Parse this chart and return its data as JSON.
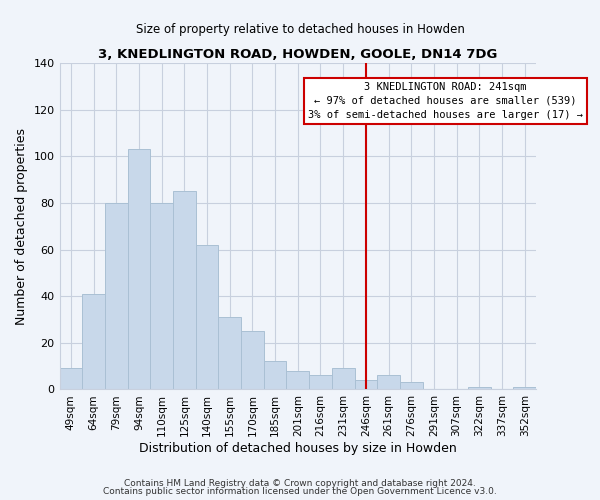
{
  "title": "3, KNEDLINGTON ROAD, HOWDEN, GOOLE, DN14 7DG",
  "subtitle": "Size of property relative to detached houses in Howden",
  "xlabel": "Distribution of detached houses by size in Howden",
  "ylabel": "Number of detached properties",
  "bar_labels": [
    "49sqm",
    "64sqm",
    "79sqm",
    "94sqm",
    "110sqm",
    "125sqm",
    "140sqm",
    "155sqm",
    "170sqm",
    "185sqm",
    "201sqm",
    "216sqm",
    "231sqm",
    "246sqm",
    "261sqm",
    "276sqm",
    "291sqm",
    "307sqm",
    "322sqm",
    "337sqm",
    "352sqm"
  ],
  "bar_heights": [
    9,
    41,
    80,
    103,
    80,
    85,
    62,
    31,
    25,
    12,
    8,
    6,
    9,
    4,
    6,
    3,
    0,
    0,
    1,
    0,
    1
  ],
  "bar_color": "#c8d8ea",
  "bar_edge_color": "#aac0d4",
  "vline_color": "#cc0000",
  "vline_pos": 13.0,
  "ylim": [
    0,
    140
  ],
  "annotation_title": "3 KNEDLINGTON ROAD: 241sqm",
  "annotation_line1": "← 97% of detached houses are smaller (539)",
  "annotation_line2": "3% of semi-detached houses are larger (17) →",
  "annotation_box_color": "#ffffff",
  "annotation_box_edge": "#cc0000",
  "footer1": "Contains HM Land Registry data © Crown copyright and database right 2024.",
  "footer2": "Contains public sector information licensed under the Open Government Licence v3.0.",
  "background_color": "#f0f4fa",
  "grid_color": "#c8d0de"
}
